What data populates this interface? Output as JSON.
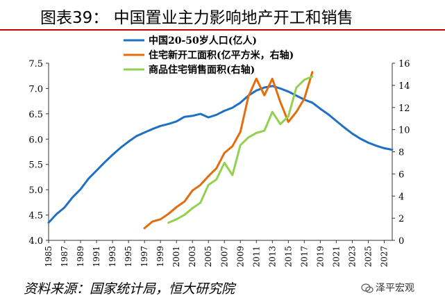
{
  "page": {
    "title": "图表39：    中国置业主力影响地产开工和销售",
    "source": "资料来源：国家统计局，恒大研究院",
    "watermark": "泽平宏观"
  },
  "colors": {
    "population": "#1f6fc5",
    "starts": "#e46c0a",
    "sales": "#92d050",
    "title_rule": "#c00000"
  },
  "icons": [
    "wechat-logo-icon"
  ],
  "chart_data": {
    "type": "line",
    "left_axis": {
      "range": [
        4.0,
        7.5
      ],
      "ticks": [
        "4.0",
        "4.5",
        "5.0",
        "5.5",
        "6.0",
        "6.5",
        "7.0",
        "7.5"
      ]
    },
    "right_axis": {
      "range": [
        0,
        16
      ],
      "ticks": [
        "0",
        "2",
        "4",
        "6",
        "8",
        "10",
        "12",
        "14",
        "16"
      ]
    },
    "x_range": [
      1985,
      2028
    ],
    "x_ticks": [
      "1985",
      "1987",
      "1989",
      "1991",
      "1993",
      "1995",
      "1997",
      "1999",
      "2001",
      "2003",
      "2005",
      "2007",
      "2009",
      "2011",
      "2013",
      "2015",
      "2017",
      "2019",
      "2021",
      "2023",
      "2025",
      "2027"
    ],
    "legend_position": "top-center",
    "grid": false,
    "series": [
      {
        "name": "中国20-50岁人口(亿人)",
        "axis": "left",
        "color_key": "population",
        "x": [
          1985,
          1986,
          1987,
          1988,
          1989,
          1990,
          1991,
          1992,
          1993,
          1994,
          1995,
          1996,
          1997,
          1998,
          1999,
          2000,
          2001,
          2002,
          2003,
          2004,
          2005,
          2006,
          2007,
          2008,
          2009,
          2010,
          2011,
          2012,
          2013,
          2014,
          2015,
          2016,
          2017,
          2018,
          2019,
          2020,
          2021,
          2022,
          2023,
          2024,
          2025,
          2026,
          2027,
          2028
        ],
        "y": [
          4.35,
          4.52,
          4.65,
          4.85,
          5.01,
          5.22,
          5.38,
          5.54,
          5.69,
          5.83,
          5.95,
          6.06,
          6.13,
          6.2,
          6.26,
          6.3,
          6.35,
          6.44,
          6.46,
          6.5,
          6.43,
          6.48,
          6.56,
          6.62,
          6.72,
          6.86,
          6.96,
          7.02,
          7.05,
          7.0,
          6.94,
          6.86,
          6.78,
          6.72,
          6.6,
          6.49,
          6.36,
          6.23,
          6.11,
          6.01,
          5.93,
          5.87,
          5.82,
          5.79
        ]
      },
      {
        "name": "住宅新开工面积(亿平方米，右轴)",
        "axis": "right",
        "color_key": "starts",
        "x": [
          1997,
          1998,
          1999,
          2000,
          2001,
          2002,
          2003,
          2004,
          2005,
          2006,
          2007,
          2008,
          2009,
          2010,
          2011,
          2012,
          2013,
          2014,
          2015,
          2016,
          2017,
          2018
        ],
        "y": [
          1.1,
          1.7,
          1.9,
          2.4,
          3.0,
          3.5,
          4.5,
          5.0,
          5.8,
          6.5,
          7.9,
          8.5,
          9.8,
          13.0,
          14.6,
          13.1,
          14.6,
          12.5,
          10.7,
          11.6,
          12.8,
          15.2
        ]
      },
      {
        "name": "商品住宅销售面积(右轴)",
        "axis": "right",
        "color_key": "sales",
        "x": [
          2000,
          2001,
          2002,
          2003,
          2004,
          2005,
          2006,
          2007,
          2008,
          2009,
          2010,
          2011,
          2012,
          2013,
          2014,
          2015,
          2016,
          2017,
          2018
        ],
        "y": [
          1.6,
          1.9,
          2.3,
          2.9,
          3.4,
          5.0,
          5.5,
          7.0,
          5.9,
          8.6,
          9.3,
          9.7,
          9.9,
          11.6,
          10.5,
          11.2,
          13.8,
          14.5,
          14.8
        ]
      }
    ]
  }
}
